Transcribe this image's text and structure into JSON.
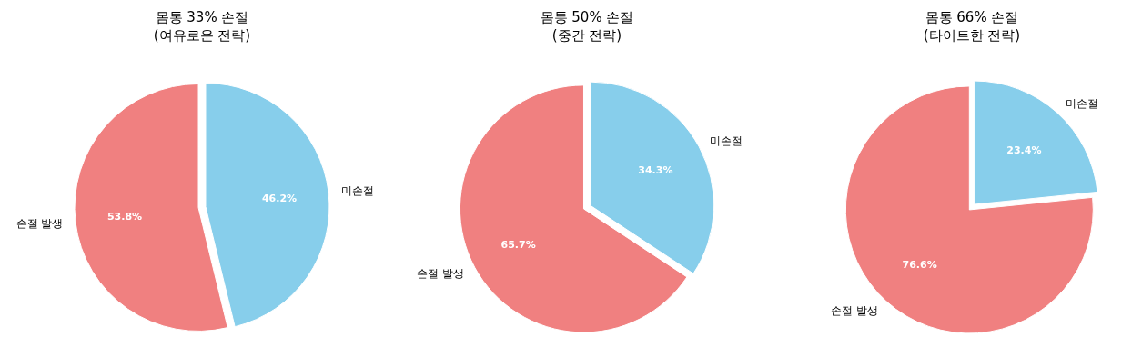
{
  "chart_data": [
    {
      "type": "pie",
      "title": "몸통 33% 손절",
      "subtitle": "(여유로운 전략)",
      "categories": [
        "손절 발생",
        "미손절"
      ],
      "values": [
        53.8,
        46.2
      ],
      "value_labels": [
        "53.8%",
        "46.2%"
      ],
      "colors": [
        "#f08080",
        "#87ceeb"
      ]
    },
    {
      "type": "pie",
      "title": "몸통 50% 손절",
      "subtitle": "(중간 전략)",
      "categories": [
        "손절 발생",
        "미손절"
      ],
      "values": [
        65.7,
        34.3
      ],
      "value_labels": [
        "65.7%",
        "34.3%"
      ],
      "colors": [
        "#f08080",
        "#87ceeb"
      ]
    },
    {
      "type": "pie",
      "title": "몸통 66% 손절",
      "subtitle": "(타이트한 전략)",
      "categories": [
        "손절 발생",
        "미손절"
      ],
      "values": [
        76.6,
        23.4
      ],
      "value_labels": [
        "76.6%",
        "23.4%"
      ],
      "colors": [
        "#f08080",
        "#87ceeb"
      ]
    }
  ]
}
